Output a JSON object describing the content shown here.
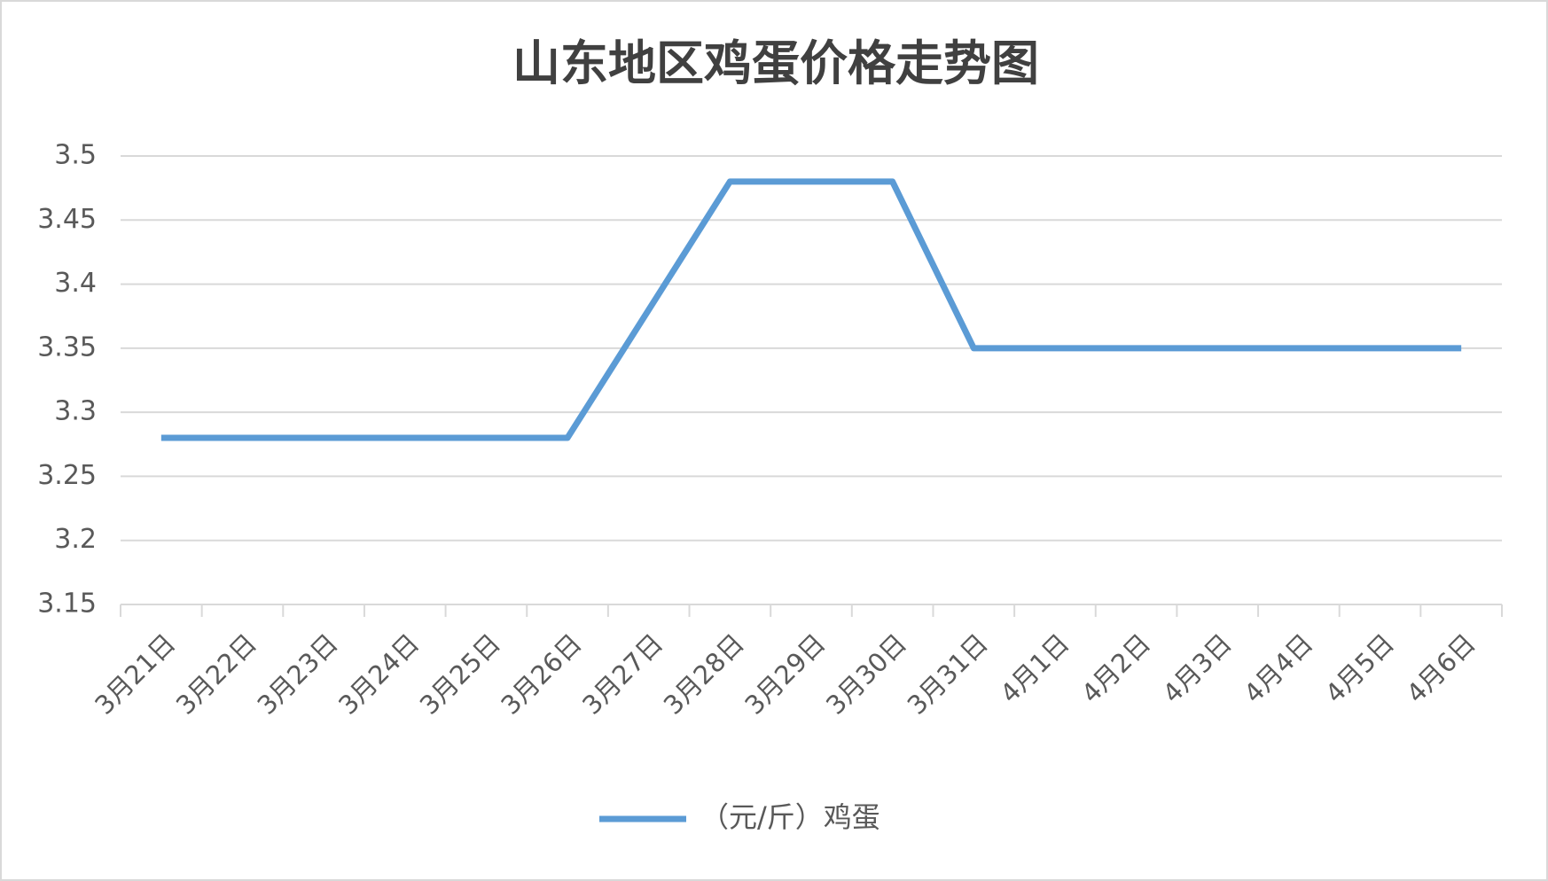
{
  "chart_data": {
    "type": "line",
    "title": "山东地区鸡蛋价格走势图",
    "categories": [
      "3月21日",
      "3月22日",
      "3月23日",
      "3月24日",
      "3月25日",
      "3月26日",
      "3月27日",
      "3月28日",
      "3月29日",
      "3月30日",
      "3月31日",
      "4月1日",
      "4月2日",
      "4月3日",
      "4月4日",
      "4月5日",
      "4月6日"
    ],
    "series": [
      {
        "name": "（元/斤）鸡蛋",
        "color": "#5b9bd5",
        "values": [
          3.28,
          3.28,
          3.28,
          3.28,
          3.28,
          3.28,
          3.38,
          3.48,
          3.48,
          3.48,
          3.35,
          3.35,
          3.35,
          3.35,
          3.35,
          3.35,
          3.35
        ]
      }
    ],
    "ylim": [
      3.15,
      3.5
    ],
    "yticks": [
      3.15,
      3.2,
      3.25,
      3.3,
      3.35,
      3.4,
      3.45,
      3.5
    ],
    "grid": true,
    "legend": "bottom"
  }
}
